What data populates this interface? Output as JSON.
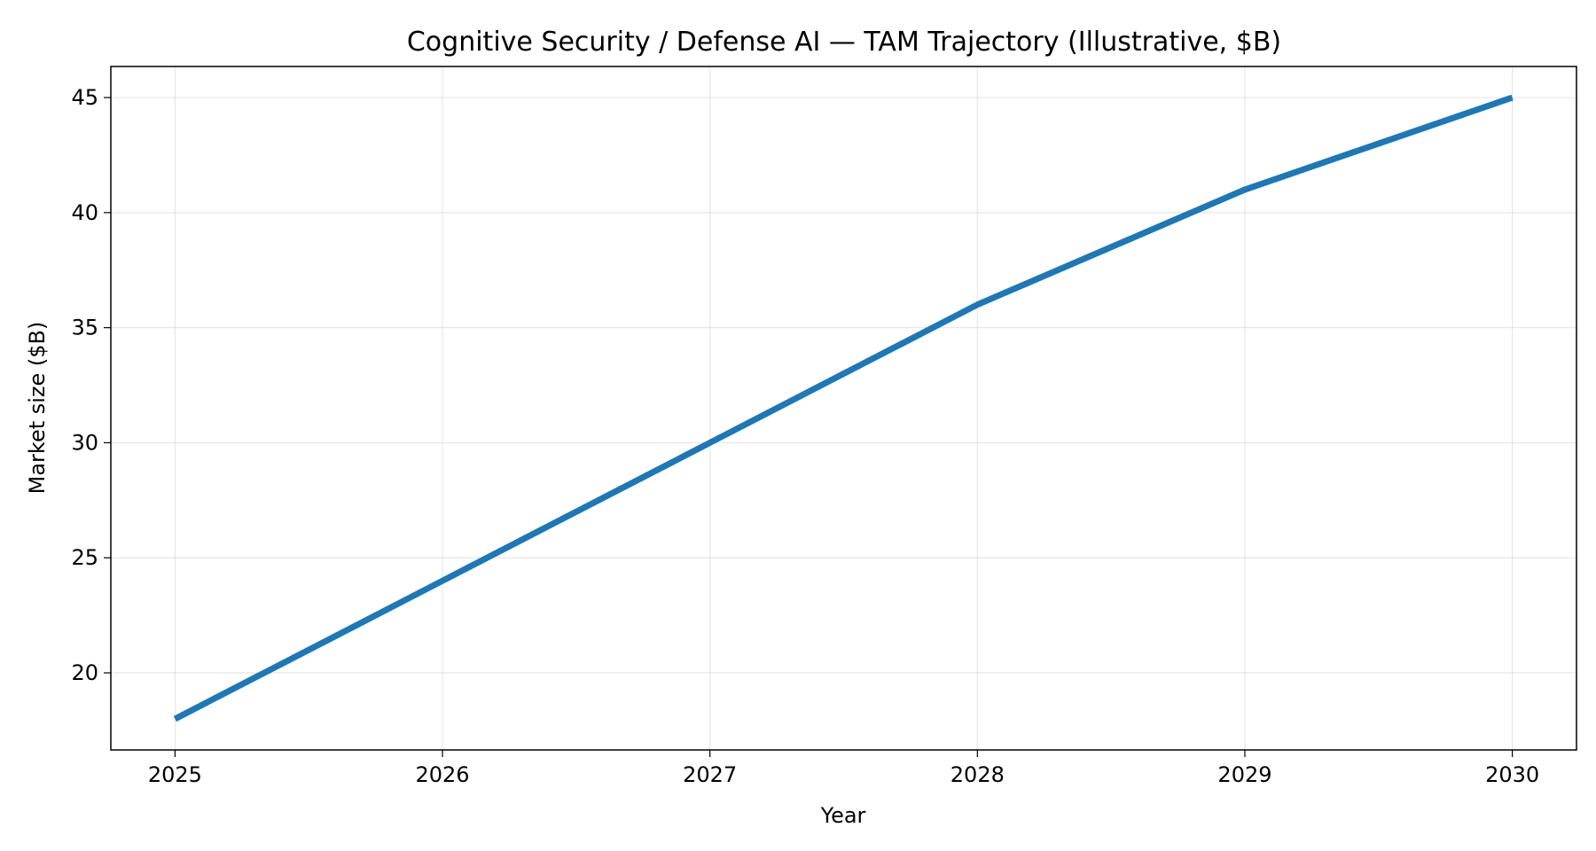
{
  "chart_data": {
    "type": "line",
    "title": "Cognitive Security / Defense AI — TAM Trajectory (Illustrative, $B)",
    "xlabel": "Year",
    "ylabel": "Market size ($B)",
    "x": [
      2025,
      2026,
      2027,
      2028,
      2029,
      2030
    ],
    "series": [
      {
        "values": [
          18,
          24,
          30,
          36,
          41,
          45
        ],
        "color": "#1f77b4"
      }
    ],
    "xlim": [
      2024.76,
      2030.24
    ],
    "ylim": [
      16.65,
      46.35
    ],
    "xticks": [
      "2025",
      "2026",
      "2027",
      "2028",
      "2029",
      "2030"
    ],
    "yticks": [
      "20",
      "25",
      "30",
      "35",
      "40",
      "45"
    ],
    "grid": true,
    "legend": "none"
  }
}
